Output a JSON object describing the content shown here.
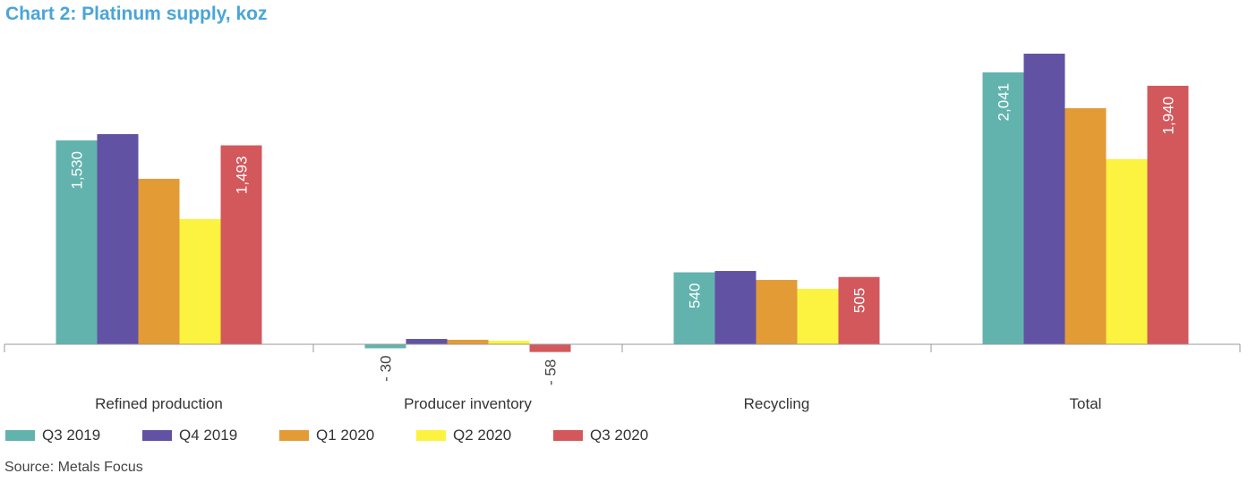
{
  "chart_data": {
    "type": "bar",
    "title": "Chart 2: Platinum supply, koz",
    "xlabel": "",
    "ylabel": "",
    "ylim": [
      -100,
      2300
    ],
    "grid": false,
    "legend_position": "bottom-left",
    "categories": [
      "Refined production",
      "Producer inventory",
      "Recycling",
      "Total"
    ],
    "series": [
      {
        "name": "Q3 2019",
        "color": "#62b3ae",
        "values": [
          1530,
          -30,
          540,
          2041
        ],
        "labeled": true
      },
      {
        "name": "Q4 2019",
        "color": "#6152a3",
        "values": [
          1577,
          40,
          550,
          2181
        ],
        "labeled": false
      },
      {
        "name": "Q1 2020",
        "color": "#e39b36",
        "values": [
          1242,
          34,
          483,
          1772
        ],
        "labeled": false
      },
      {
        "name": "Q2 2020",
        "color": "#fcf240",
        "values": [
          940,
          27,
          416,
          1389
        ],
        "labeled": false
      },
      {
        "name": "Q3 2020",
        "color": "#d3585c",
        "values": [
          1493,
          -58,
          505,
          1940
        ],
        "labeled": true
      }
    ],
    "source": "Source: Metals Focus"
  }
}
